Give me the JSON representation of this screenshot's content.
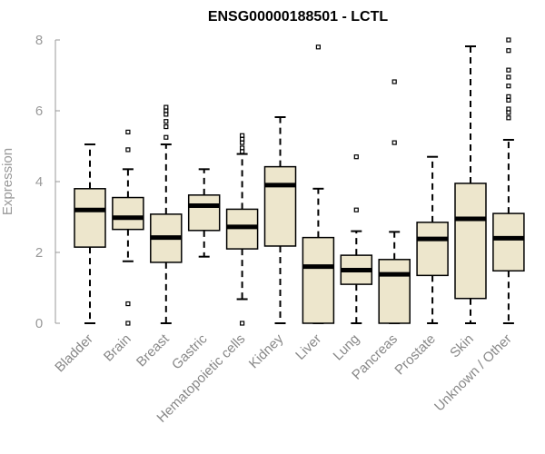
{
  "chart_data": {
    "type": "boxplot",
    "title": "ENSG00000188501 - LCTL",
    "xlabel": "",
    "ylabel": "Expression",
    "ylim": [
      0,
      8
    ],
    "yticks": [
      0,
      2,
      4,
      6,
      8
    ],
    "colors": {
      "box_fill": "#ede6cc",
      "box_stroke": "#000000",
      "median": "#000000",
      "axis": "#999999"
    },
    "categories": [
      "Bladder",
      "Brain",
      "Breast",
      "Gastric",
      "Hematopoietic cells",
      "Kidney",
      "Liver",
      "Lung",
      "Pancreas",
      "Prostate",
      "Skin",
      "Unknown / Other"
    ],
    "boxes": [
      {
        "name": "Bladder",
        "whisker_low": 0,
        "q1": 2.15,
        "median": 3.2,
        "q3": 3.8,
        "whisker_high": 5.05,
        "outliers": []
      },
      {
        "name": "Brain",
        "whisker_low": 1.75,
        "q1": 2.65,
        "median": 2.98,
        "q3": 3.55,
        "whisker_high": 4.35,
        "outliers": [
          5.4,
          4.9,
          0.55,
          0
        ]
      },
      {
        "name": "Breast",
        "whisker_low": 0,
        "q1": 1.72,
        "median": 2.42,
        "q3": 3.08,
        "whisker_high": 5.05,
        "outliers": [
          6.1,
          6.0,
          5.9,
          5.7,
          5.55,
          5.25
        ]
      },
      {
        "name": "Gastric",
        "whisker_low": 1.88,
        "q1": 2.62,
        "median": 3.32,
        "q3": 3.62,
        "whisker_high": 4.35,
        "outliers": []
      },
      {
        "name": "Hematopoietic cells",
        "whisker_low": 0.68,
        "q1": 2.1,
        "median": 2.72,
        "q3": 3.22,
        "whisker_high": 4.78,
        "outliers": [
          5.3,
          5.2,
          5.1,
          4.95,
          4.85,
          0
        ]
      },
      {
        "name": "Kidney",
        "whisker_low": 0,
        "q1": 2.18,
        "median": 3.9,
        "q3": 4.42,
        "whisker_high": 5.82,
        "outliers": []
      },
      {
        "name": "Liver",
        "whisker_low": 0,
        "q1": 0,
        "median": 1.6,
        "q3": 2.42,
        "whisker_high": 3.8,
        "outliers": [
          7.8
        ]
      },
      {
        "name": "Lung",
        "whisker_low": 0,
        "q1": 1.1,
        "median": 1.5,
        "q3": 1.92,
        "whisker_high": 2.6,
        "outliers": [
          4.7,
          3.2
        ]
      },
      {
        "name": "Pancreas",
        "whisker_low": 0,
        "q1": 0,
        "median": 1.38,
        "q3": 1.8,
        "whisker_high": 2.58,
        "outliers": [
          6.82,
          5.1
        ]
      },
      {
        "name": "Prostate",
        "whisker_low": 0,
        "q1": 1.35,
        "median": 2.38,
        "q3": 2.85,
        "whisker_high": 4.7,
        "outliers": []
      },
      {
        "name": "Skin",
        "whisker_low": 0,
        "q1": 0.7,
        "median": 2.95,
        "q3": 3.95,
        "whisker_high": 7.82,
        "outliers": []
      },
      {
        "name": "Unknown / Other",
        "whisker_low": 0,
        "q1": 1.48,
        "median": 2.4,
        "q3": 3.1,
        "whisker_high": 5.18,
        "outliers": [
          8.0,
          7.7,
          7.15,
          6.95,
          6.7,
          6.4,
          6.3,
          6.05,
          5.95,
          5.8
        ]
      }
    ]
  }
}
